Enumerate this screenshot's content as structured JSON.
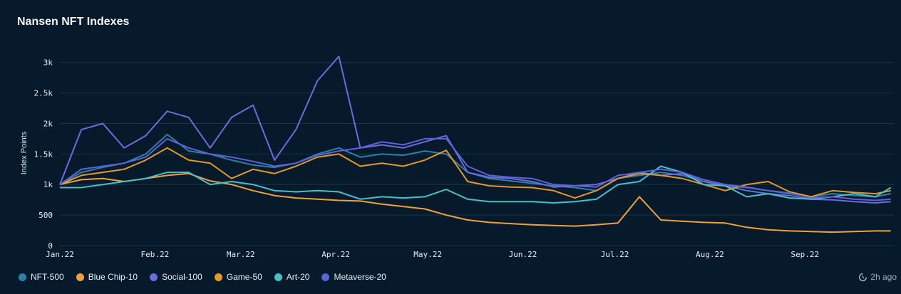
{
  "title": "Nansen NFT Indexes",
  "updated": "2h ago",
  "chart_data": {
    "type": "line",
    "title": "Nansen NFT Indexes",
    "xlabel": "",
    "ylabel": "Index Points",
    "ylim": [
      0,
      3300
    ],
    "grid": true,
    "legend_position": "bottom-left",
    "x_ticks": [
      "Jan.22",
      "Feb.22",
      "Mar.22",
      "Apr.22",
      "May.22",
      "Jun.22",
      "Jul.22",
      "Aug.22",
      "Sep.22"
    ],
    "y_ticks": [
      "0",
      "500",
      "1k",
      "1.5k",
      "2k",
      "2.5k",
      "3k"
    ],
    "y_tick_values": [
      0,
      500,
      1000,
      1500,
      2000,
      2500,
      3000
    ],
    "x": [
      "2022-01-01",
      "2022-01-08",
      "2022-01-15",
      "2022-01-22",
      "2022-01-29",
      "2022-02-05",
      "2022-02-12",
      "2022-02-19",
      "2022-02-26",
      "2022-03-05",
      "2022-03-12",
      "2022-03-19",
      "2022-03-26",
      "2022-04-02",
      "2022-04-09",
      "2022-04-16",
      "2022-04-23",
      "2022-04-30",
      "2022-05-07",
      "2022-05-14",
      "2022-05-21",
      "2022-05-28",
      "2022-06-04",
      "2022-06-11",
      "2022-06-18",
      "2022-06-25",
      "2022-07-02",
      "2022-07-09",
      "2022-07-16",
      "2022-07-23",
      "2022-07-30",
      "2022-08-06",
      "2022-08-13",
      "2022-08-20",
      "2022-08-27",
      "2022-09-03",
      "2022-09-10",
      "2022-09-17",
      "2022-09-24",
      "2022-09-29"
    ],
    "series": [
      {
        "name": "NFT-500",
        "color": "#2f7ea6",
        "values": [
          1000,
          1200,
          1280,
          1350,
          1500,
          1820,
          1550,
          1500,
          1400,
          1320,
          1280,
          1350,
          1500,
          1600,
          1450,
          1500,
          1480,
          1550,
          1500,
          1200,
          1100,
          1060,
          1020,
          980,
          950,
          900,
          1100,
          1150,
          1200,
          1150,
          1050,
          980,
          950,
          900,
          850,
          800,
          850,
          820,
          800,
          850
        ]
      },
      {
        "name": "Blue Chip-10",
        "color": "#f0a23a",
        "values": [
          1000,
          1080,
          1100,
          1050,
          1100,
          1150,
          1180,
          1060,
          1000,
          900,
          820,
          780,
          760,
          740,
          730,
          680,
          640,
          600,
          500,
          420,
          380,
          360,
          340,
          330,
          320,
          340,
          370,
          800,
          420,
          400,
          380,
          370,
          300,
          260,
          240,
          230,
          220,
          230,
          240,
          240
        ]
      },
      {
        "name": "Social-100",
        "color": "#6e6bdc",
        "values": [
          1000,
          1900,
          2000,
          1600,
          1800,
          2200,
          2100,
          1600,
          2100,
          2300,
          1400,
          1900,
          2700,
          3100,
          1600,
          1650,
          1600,
          1700,
          1800,
          1200,
          1120,
          1100,
          1050,
          960,
          980,
          1000,
          1100,
          1200,
          1150,
          1180,
          1050,
          980,
          900,
          850,
          820,
          760,
          750,
          720,
          700,
          720
        ]
      },
      {
        "name": "Game-50",
        "color": "#e2982a",
        "values": [
          1000,
          1150,
          1200,
          1250,
          1400,
          1600,
          1400,
          1350,
          1100,
          1250,
          1180,
          1300,
          1450,
          1500,
          1300,
          1350,
          1300,
          1400,
          1560,
          1050,
          980,
          960,
          950,
          900,
          780,
          900,
          1100,
          1180,
          1150,
          1100,
          1000,
          900,
          1000,
          1050,
          880,
          800,
          900,
          870,
          850,
          900
        ]
      },
      {
        "name": "Art-20",
        "color": "#45c1c7",
        "values": [
          950,
          950,
          1000,
          1050,
          1100,
          1200,
          1200,
          1000,
          1050,
          1000,
          900,
          880,
          900,
          880,
          760,
          800,
          780,
          800,
          920,
          760,
          720,
          720,
          720,
          700,
          720,
          760,
          1000,
          1050,
          1300,
          1200,
          1000,
          980,
          800,
          850,
          780,
          760,
          800,
          850,
          800,
          950
        ]
      },
      {
        "name": "Metaverse-20",
        "color": "#5c63d8",
        "values": [
          1000,
          1250,
          1300,
          1350,
          1450,
          1750,
          1600,
          1500,
          1450,
          1380,
          1300,
          1350,
          1480,
          1550,
          1600,
          1700,
          1650,
          1750,
          1750,
          1300,
          1150,
          1120,
          1100,
          1000,
          980,
          960,
          1150,
          1200,
          1250,
          1200,
          1080,
          1000,
          960,
          900,
          860,
          780,
          800,
          760,
          740,
          760
        ]
      }
    ]
  }
}
